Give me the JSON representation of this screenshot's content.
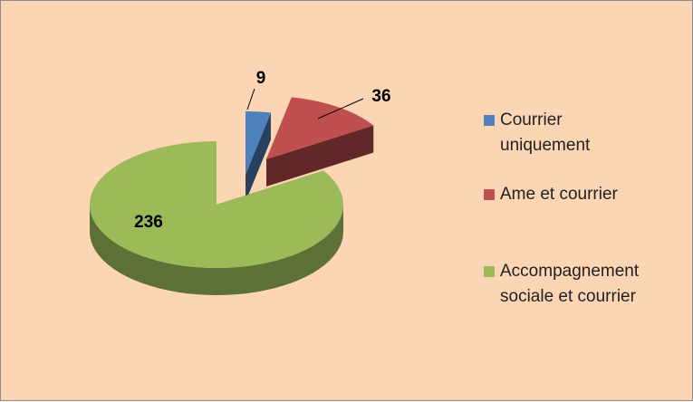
{
  "chart_data": {
    "type": "pie",
    "categories": [
      "Courrier uniquement",
      "Ame et courrier",
      "Accompagnement sociale et courrier"
    ],
    "values": [
      9,
      36,
      236
    ],
    "colors": [
      "#4f81bd",
      "#c0504d",
      "#9bbb59"
    ],
    "legend": "right"
  }
}
